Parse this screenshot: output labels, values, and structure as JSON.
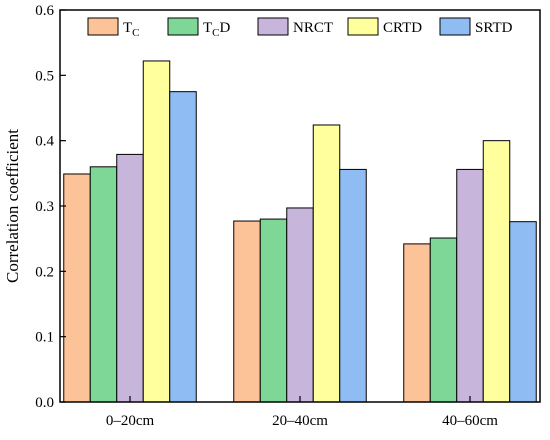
{
  "chart_data": {
    "type": "bar",
    "title": "",
    "xlabel": "",
    "ylabel": "Correlation coefficient",
    "ylim": [
      0,
      0.6
    ],
    "yticks": [
      "0.0",
      "0.1",
      "0.2",
      "0.3",
      "0.4",
      "0.5",
      "0.6"
    ],
    "categories": [
      "0–20cm",
      "20–40cm",
      "40–60cm"
    ],
    "series": [
      {
        "name": "TC",
        "label_main": "T",
        "label_sub": "C",
        "label_suffix": "",
        "color": "#fdc398",
        "values": [
          0.349,
          0.277,
          0.242
        ]
      },
      {
        "name": "TCD",
        "label_main": "T",
        "label_sub": "C",
        "label_suffix": "D",
        "color": "#7fd797",
        "values": [
          0.36,
          0.28,
          0.251
        ]
      },
      {
        "name": "NRCT",
        "label_main": "NRCT",
        "label_sub": "",
        "label_suffix": "",
        "color": "#c8b5dc",
        "values": [
          0.379,
          0.297,
          0.356
        ]
      },
      {
        "name": "CRTD",
        "label_main": "CRTD",
        "label_sub": "",
        "label_suffix": "",
        "color": "#ffff9e",
        "values": [
          0.522,
          0.424,
          0.4
        ]
      },
      {
        "name": "SRTD",
        "label_main": "SRTD",
        "label_sub": "",
        "label_suffix": "",
        "color": "#8fbcf2",
        "values": [
          0.475,
          0.356,
          0.276
        ]
      }
    ],
    "legend_position": "top",
    "grid": false
  }
}
